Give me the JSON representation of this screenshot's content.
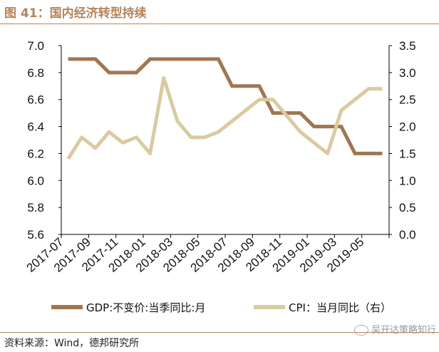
{
  "header": {
    "title": "图 41：国内经济转型持续"
  },
  "footer": {
    "source": "资料来源：Wind，德邦研究所",
    "watermark": "吴开达策略知行"
  },
  "colors": {
    "accent": "#b5835a",
    "gdp": "#a07650",
    "cpi": "#d9cba0"
  },
  "chart_data": {
    "type": "line",
    "title": "",
    "x": [
      "2017-07",
      "2017-08",
      "2017-09",
      "2017-10",
      "2017-11",
      "2017-12",
      "2018-01",
      "2018-02",
      "2018-03",
      "2018-04",
      "2018-05",
      "2018-06",
      "2018-07",
      "2018-08",
      "2018-09",
      "2018-10",
      "2018-11",
      "2018-12",
      "2019-01",
      "2019-02",
      "2019-03",
      "2019-04",
      "2019-05",
      "2019-06"
    ],
    "x_tick_labels": [
      "2017-07",
      "2017-09",
      "2017-11",
      "2018-01",
      "2018-03",
      "2018-05",
      "2018-07",
      "2018-09",
      "2018-11",
      "2019-01",
      "2019-03",
      "2019-05"
    ],
    "y_left": {
      "lim": [
        5.6,
        7.0
      ],
      "ticks": [
        "5.6",
        "5.8",
        "6.0",
        "6.2",
        "6.4",
        "6.6",
        "6.8",
        "7.0"
      ]
    },
    "y_right": {
      "lim": [
        0.0,
        3.5
      ],
      "ticks": [
        "0.0",
        "0.5",
        "1.0",
        "1.5",
        "2.0",
        "2.5",
        "3.0",
        "3.5"
      ]
    },
    "series": [
      {
        "name": "GDP:不变价:当季同比:月",
        "axis": "left",
        "values": [
          6.9,
          6.9,
          6.9,
          6.8,
          6.8,
          6.8,
          6.9,
          6.9,
          6.9,
          6.9,
          6.9,
          6.9,
          6.7,
          6.7,
          6.7,
          6.5,
          6.5,
          6.5,
          6.4,
          6.4,
          6.4,
          6.2,
          6.2,
          6.2
        ]
      },
      {
        "name": "CPI：当月同比（右）",
        "axis": "right",
        "values": [
          1.4,
          1.8,
          1.6,
          1.9,
          1.7,
          1.8,
          1.5,
          2.9,
          2.1,
          1.8,
          1.8,
          1.9,
          2.1,
          2.3,
          2.5,
          2.5,
          2.2,
          1.9,
          1.7,
          1.5,
          2.3,
          2.5,
          2.7,
          2.7
        ]
      }
    ],
    "grid": false,
    "legend": "bottom"
  }
}
